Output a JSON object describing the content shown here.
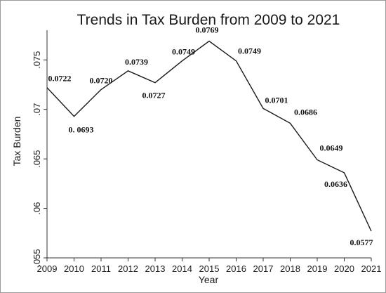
{
  "chart_data": {
    "type": "line",
    "title": "Trends in Tax Burden from 2009 to 2021",
    "xlabel": "Year",
    "ylabel": "Tax Burden",
    "x": [
      2009,
      2010,
      2011,
      2012,
      2013,
      2014,
      2015,
      2016,
      2017,
      2018,
      2019,
      2020,
      2021
    ],
    "series": [
      {
        "values": [
          0.0722,
          0.0693,
          0.072,
          0.0739,
          0.0727,
          0.0749,
          0.0769,
          0.0749,
          0.0701,
          0.0686,
          0.0649,
          0.0636,
          0.0577
        ]
      }
    ],
    "data_labels": [
      "0.0722",
      "0. 0693",
      "0.0720",
      "0.0739",
      "0.0727",
      "0.0749",
      "0.0769",
      "0.0749",
      "0.0701",
      "0.0686",
      "0.0649",
      "0.0636",
      "0.0577"
    ],
    "x_tick_labels": [
      "2009",
      "2010",
      "2011",
      "2012",
      "2013",
      "2014",
      "2015",
      "2016",
      "2017",
      "2018",
      "2019",
      "2020",
      "2021"
    ],
    "y_ticks": [
      0.055,
      0.06,
      0.065,
      0.07,
      0.075
    ],
    "y_tick_labels": [
      ".055",
      ".06",
      ".065",
      ".07",
      ".075"
    ],
    "xlim": [
      2009,
      2021
    ],
    "ylim": [
      0.055,
      0.078
    ],
    "grid": false,
    "legend": "none",
    "colors": {
      "line": "#1a1a1a",
      "axis": "#333333",
      "text": "#1a1a1a"
    }
  }
}
